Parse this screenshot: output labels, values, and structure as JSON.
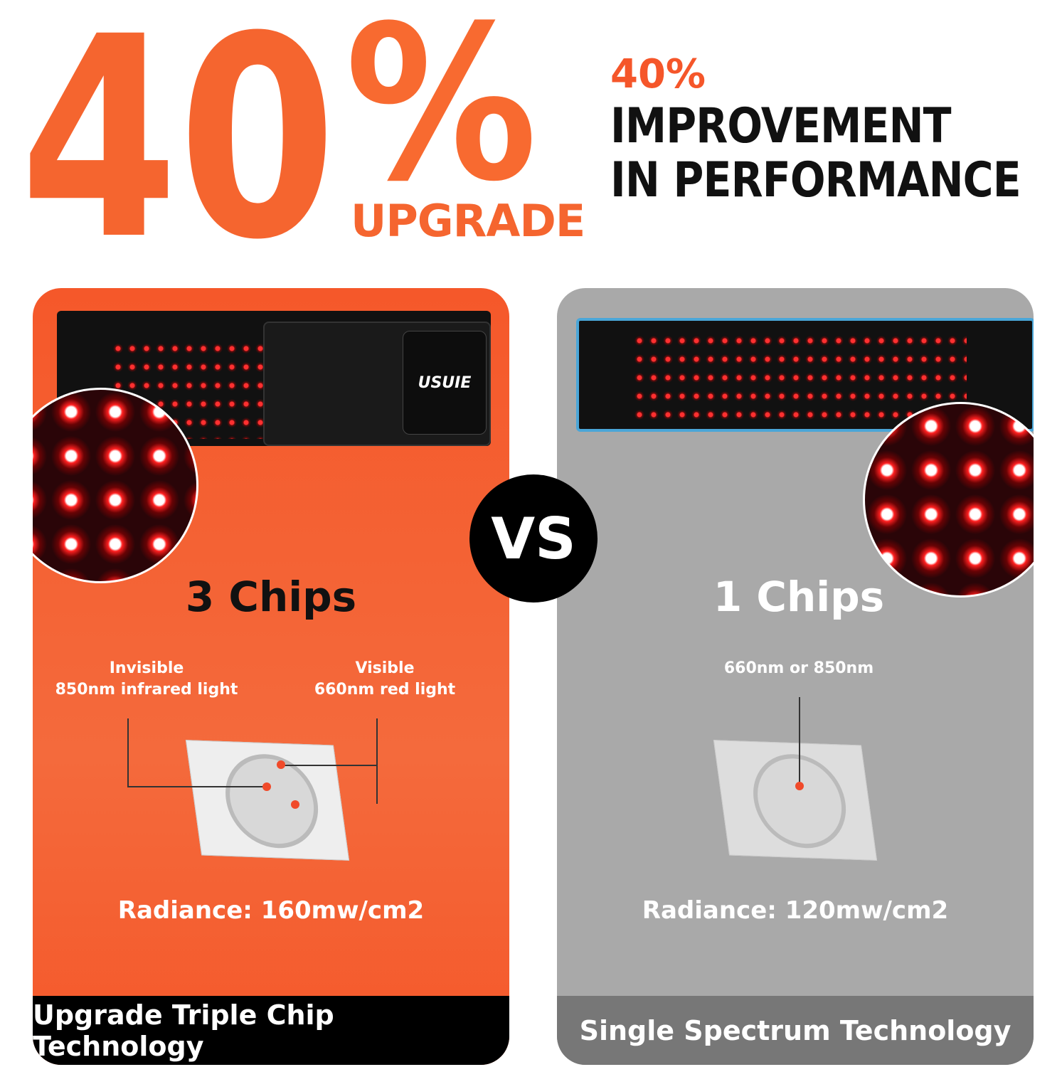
{
  "headline": {
    "big_percent": "40%",
    "upgrade": "UPGRADE",
    "small_percent": "40%",
    "line1": "IMPROVEMENT",
    "line2": "IN PERFORMANCE"
  },
  "left": {
    "logo": "USUIE",
    "chips": "3 Chips",
    "label_invisible": "Invisible",
    "label_invisible_desc": "850nm infrared light",
    "label_visible": "Visible",
    "label_visible_desc": "660nm red light",
    "radiance": "Radiance: 160mw/cm2",
    "footer": "Upgrade Triple Chip Technology"
  },
  "vs": "VS",
  "right": {
    "chips": "1 Chips",
    "label": "660nm or 850nm",
    "radiance": "Radiance: 120mw/cm2",
    "footer": "Single Spectrum Technology"
  },
  "colors": {
    "accent": "#f5652f",
    "gray_card": "#a9a9a9",
    "left_footer": "#000000",
    "right_footer": "#777777"
  }
}
